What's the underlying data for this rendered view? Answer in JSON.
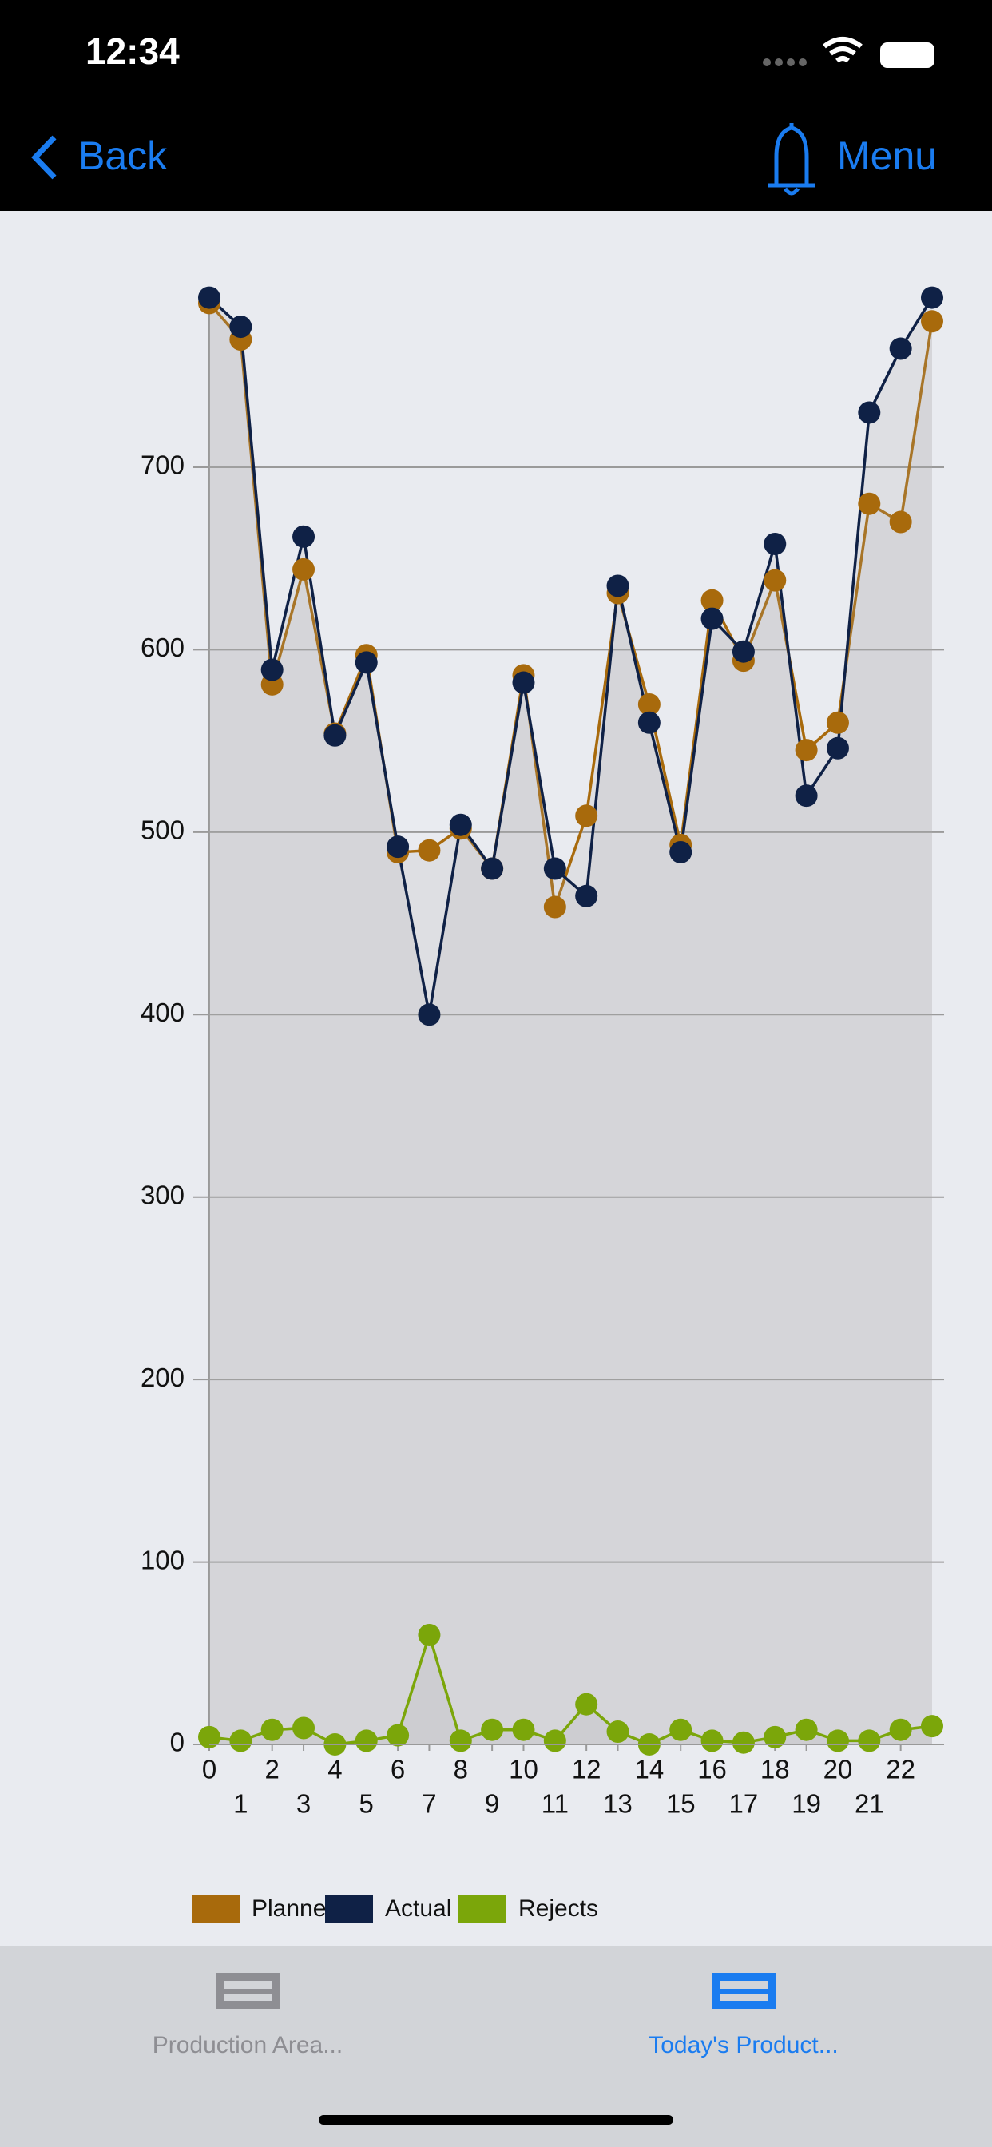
{
  "status_bar": {
    "time": "12:34"
  },
  "nav": {
    "back": "Back",
    "menu": "Menu"
  },
  "tabs": [
    "Production Area...",
    "Today's Product..."
  ],
  "chart_data": {
    "type": "line",
    "x": [
      0,
      1,
      2,
      3,
      4,
      5,
      6,
      7,
      8,
      9,
      10,
      11,
      12,
      13,
      14,
      15,
      16,
      17,
      18,
      19,
      20,
      21,
      22,
      23
    ],
    "xlim": [
      0,
      23
    ],
    "xticks": [
      0,
      1,
      2,
      3,
      4,
      5,
      6,
      7,
      8,
      9,
      10,
      11,
      12,
      13,
      14,
      15,
      16,
      17,
      18,
      19,
      20,
      21,
      22
    ],
    "ylim": [
      0,
      795
    ],
    "yticks": [
      0,
      100,
      200,
      300,
      400,
      500,
      600,
      700
    ],
    "grid": true,
    "series": [
      {
        "name": "Planned",
        "color": "#a86a0c",
        "values": [
          790,
          770,
          581,
          644,
          554,
          597,
          489,
          490,
          502,
          480,
          586,
          459,
          509,
          631,
          570,
          493,
          627,
          594,
          638,
          545,
          560,
          680,
          670,
          780
        ]
      },
      {
        "name": "Actual",
        "color": "#0f2146",
        "values": [
          793,
          777,
          589,
          662,
          553,
          593,
          492,
          400,
          504,
          480,
          582,
          480,
          465,
          635,
          560,
          489,
          617,
          599,
          658,
          520,
          546,
          730,
          765,
          793
        ]
      },
      {
        "name": "Rejects",
        "color": "#7ba60a",
        "values": [
          4,
          2,
          8,
          9,
          0,
          2,
          5,
          60,
          2,
          8,
          8,
          2,
          22,
          7,
          0,
          8,
          2,
          1,
          4,
          8,
          2,
          2,
          8,
          10
        ]
      }
    ]
  }
}
